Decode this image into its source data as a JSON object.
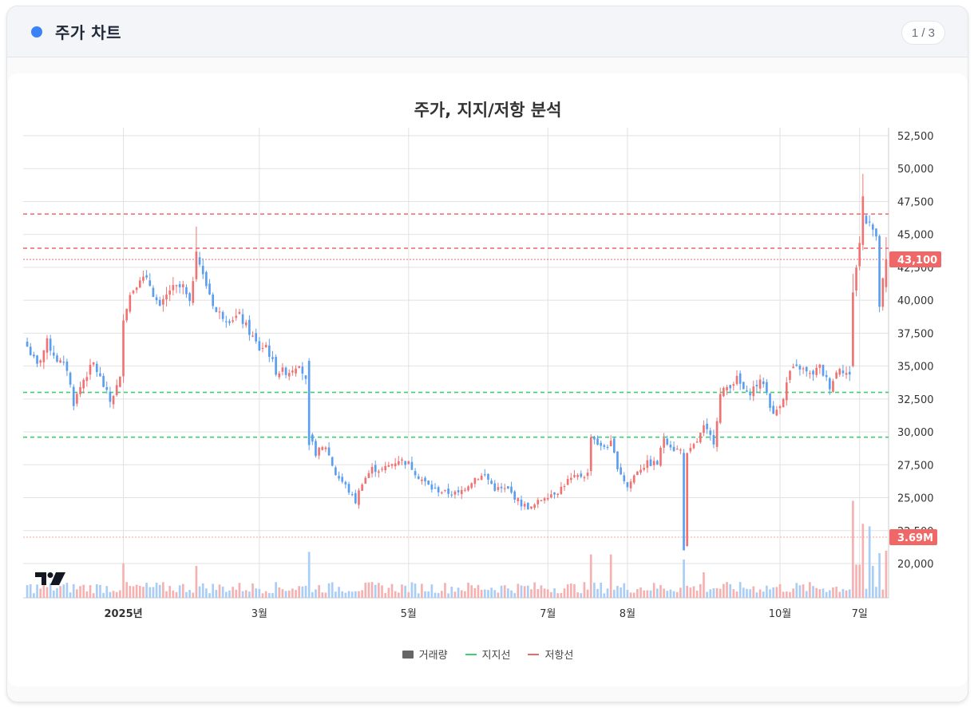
{
  "header": {
    "title": "주가 차트",
    "accent_color": "#3b82f6",
    "pager": "1 / 3"
  },
  "chart_title": "주가, 지지/저항 분석",
  "legend": {
    "volume": "거래량",
    "support": "지지선",
    "resistance": "저항선"
  },
  "price_badge": "43,100",
  "volume_badge": "3.69M",
  "colors": {
    "up": "#f07373",
    "down": "#5b9ef0",
    "up_vol": "#f5b1b1",
    "down_vol": "#a9cdf5",
    "support": "#3ecf6e",
    "resistance": "#f06767",
    "grid": "#e2e2e2"
  },
  "chart_data": {
    "type": "candlestick",
    "title": "주가, 지지/저항 분석",
    "xlabel": "",
    "ylabel": "",
    "ylim": [
      17500,
      53500
    ],
    "y_ticks": [
      20000,
      22500,
      25000,
      27500,
      30000,
      32500,
      35000,
      37500,
      40000,
      42500,
      45000,
      47500,
      50000,
      52500
    ],
    "y_tick_labels": [
      "20,000",
      "22,500",
      "25,000",
      "27,500",
      "30,000",
      "32,500",
      "35,000",
      "37,500",
      "40,000",
      "42,500",
      "45,000",
      "47,500",
      "50,000",
      "52,500"
    ],
    "x_ticks": [
      {
        "label": "2025년",
        "bold": true,
        "index": 29
      },
      {
        "label": "3월",
        "bold": false,
        "index": 70
      },
      {
        "label": "5월",
        "bold": false,
        "index": 115
      },
      {
        "label": "7월",
        "bold": false,
        "index": 157
      },
      {
        "label": "8월",
        "bold": false,
        "index": 181
      },
      {
        "label": "10월",
        "bold": false,
        "index": 227
      },
      {
        "label": "7일",
        "bold": false,
        "index": 251
      }
    ],
    "support_levels": [
      33000,
      29600
    ],
    "resistance_levels": [
      46550,
      43950
    ],
    "last_price": 43100,
    "last_volume": "3.69M",
    "legend": [
      "거래량",
      "지지선",
      "저항선"
    ],
    "grid": true,
    "anchors": [
      [
        0,
        36500
      ],
      [
        3,
        35000
      ],
      [
        6,
        36800
      ],
      [
        9,
        35500
      ],
      [
        12,
        34800
      ],
      [
        14,
        32200
      ],
      [
        17,
        34000
      ],
      [
        20,
        35200
      ],
      [
        23,
        33500
      ],
      [
        25,
        32300
      ],
      [
        28,
        34000
      ],
      [
        29,
        38800
      ],
      [
        31,
        40400
      ],
      [
        34,
        41800
      ],
      [
        37,
        41200
      ],
      [
        40,
        39300
      ],
      [
        43,
        40800
      ],
      [
        47,
        41000
      ],
      [
        49,
        39600
      ],
      [
        51,
        43800
      ],
      [
        53,
        41800
      ],
      [
        55,
        40500
      ],
      [
        57,
        39100
      ],
      [
        61,
        38600
      ],
      [
        64,
        38800
      ],
      [
        67,
        37600
      ],
      [
        70,
        36300
      ],
      [
        72,
        36600
      ],
      [
        75,
        34600
      ],
      [
        79,
        34600
      ],
      [
        82,
        35300
      ],
      [
        84,
        33800
      ],
      [
        85,
        29700
      ],
      [
        87,
        28400
      ],
      [
        90,
        28900
      ],
      [
        93,
        26800
      ],
      [
        96,
        25900
      ],
      [
        99,
        24700
      ],
      [
        101,
        26200
      ],
      [
        104,
        27200
      ],
      [
        107,
        27100
      ],
      [
        112,
        27900
      ],
      [
        115,
        27600
      ],
      [
        118,
        26600
      ],
      [
        122,
        25700
      ],
      [
        126,
        25400
      ],
      [
        130,
        25300
      ],
      [
        135,
        26500
      ],
      [
        138,
        26700
      ],
      [
        141,
        25700
      ],
      [
        145,
        25600
      ],
      [
        149,
        24500
      ],
      [
        152,
        24200
      ],
      [
        156,
        25100
      ],
      [
        160,
        25500
      ],
      [
        163,
        26300
      ],
      [
        166,
        26600
      ],
      [
        169,
        26800
      ],
      [
        170,
        29800
      ],
      [
        173,
        28800
      ],
      [
        176,
        29100
      ],
      [
        178,
        27400
      ],
      [
        181,
        25800
      ],
      [
        184,
        27100
      ],
      [
        187,
        27600
      ],
      [
        190,
        27600
      ],
      [
        192,
        29600
      ],
      [
        195,
        28700
      ],
      [
        197,
        28600
      ],
      [
        198,
        21500
      ],
      [
        199,
        28200
      ],
      [
        202,
        29300
      ],
      [
        204,
        30300
      ],
      [
        207,
        29300
      ],
      [
        209,
        32800
      ],
      [
        211,
        33400
      ],
      [
        214,
        34000
      ],
      [
        217,
        32800
      ],
      [
        220,
        33600
      ],
      [
        222,
        33800
      ],
      [
        225,
        31200
      ],
      [
        228,
        32700
      ],
      [
        230,
        34600
      ],
      [
        233,
        34900
      ],
      [
        236,
        34300
      ],
      [
        239,
        34900
      ],
      [
        242,
        33500
      ],
      [
        245,
        35000
      ],
      [
        248,
        34200
      ],
      [
        249,
        40700
      ],
      [
        251,
        44300
      ],
      [
        252,
        46200
      ],
      [
        254,
        46200
      ],
      [
        256,
        44500
      ],
      [
        257,
        39600
      ],
      [
        259,
        43100
      ]
    ],
    "volume_spikes": {
      "29": 2.7,
      "51": 2.5,
      "85": 3.6,
      "170": 3.4,
      "176": 3.4,
      "198": 3.0,
      "204": 2.0,
      "249": 7.6,
      "250": 2.6,
      "251": 2.6,
      "252": 5.8,
      "254": 5.6,
      "255": 2.5,
      "257": 3.5,
      "259": 3.69
    }
  }
}
